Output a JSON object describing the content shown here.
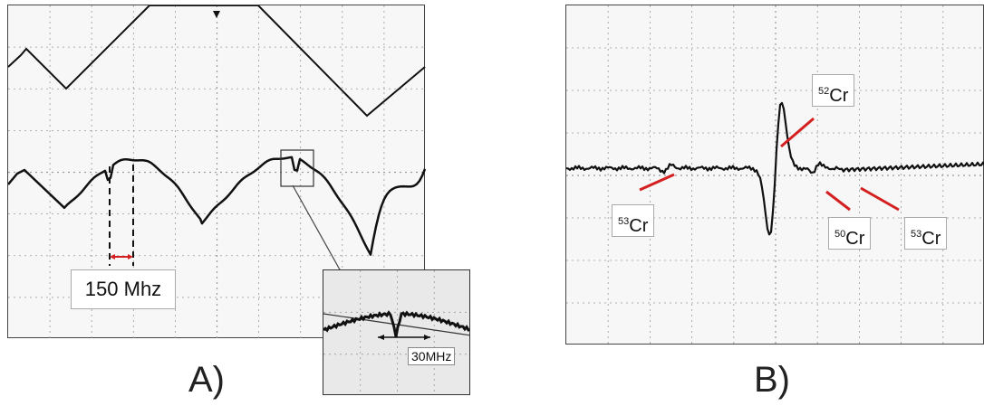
{
  "panel_a": {
    "letter": "A)",
    "spacing_label": "150 Mhz",
    "inset_label": "30MHz"
  },
  "panel_b": {
    "letter": "B)",
    "labels": [
      {
        "mass": "53",
        "element": "Cr"
      },
      {
        "mass": "52",
        "element": "Cr"
      },
      {
        "mass": "50",
        "element": "Cr"
      },
      {
        "mass": "53",
        "element": "Cr"
      }
    ]
  },
  "colors": {
    "trace": "#111111",
    "grid": "#9a9a9a",
    "pointer": "#d42020",
    "marker": "#d42020"
  }
}
